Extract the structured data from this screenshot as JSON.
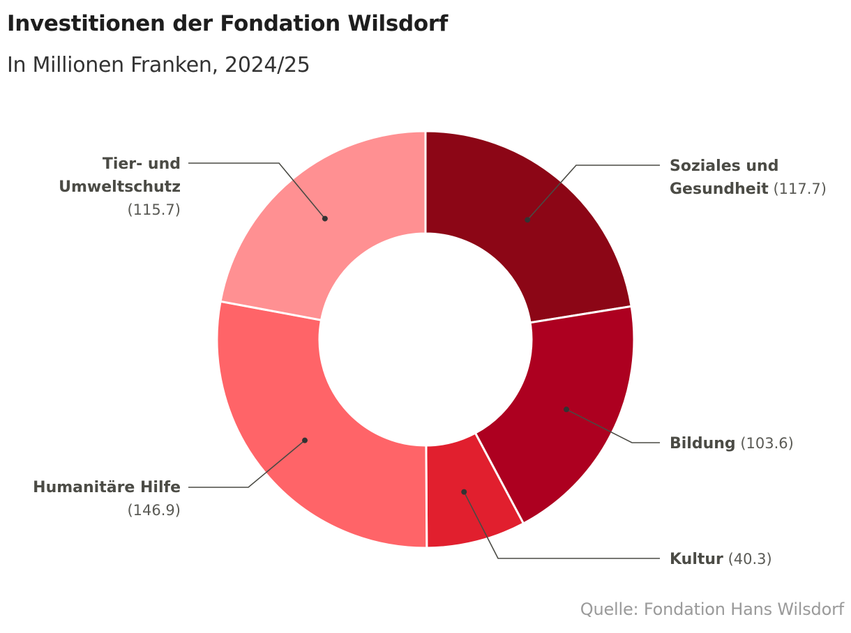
{
  "chart": {
    "title": "Investitionen der Fondation Wilsdorf",
    "subtitle": "In Millionen Franken, 2024/25",
    "source": "Quelle: Fondation Hans Wilsdorf"
  },
  "chart_data": {
    "type": "pie",
    "variant": "donut",
    "title": "Investitionen der Fondation Wilsdorf",
    "subtitle": "In Millionen Franken, 2024/25",
    "unit": "Millionen Franken",
    "start": "12 o'clock, clockwise",
    "slices": [
      {
        "lines": [
          "Soziales und",
          "Gesundheit"
        ],
        "value": 117.7,
        "value_label": "(117.7)",
        "color": "#8c0616"
      },
      {
        "lines": [
          "Bildung"
        ],
        "value": 103.6,
        "value_label": "(103.6)",
        "color": "#ad0020"
      },
      {
        "lines": [
          "Kultur"
        ],
        "value": 40.3,
        "value_label": "(40.3)",
        "color": "#e11f2e"
      },
      {
        "lines": [
          "Humanitäre Hilfe"
        ],
        "value": 146.9,
        "value_label": "(146.9)",
        "color": "#ff6468"
      },
      {
        "lines": [
          "Tier- und",
          "Umweltschutz"
        ],
        "value": 115.7,
        "value_label": "(115.7)",
        "color": "#ff9092"
      }
    ],
    "source": "Quelle: Fondation Hans Wilsdorf"
  }
}
